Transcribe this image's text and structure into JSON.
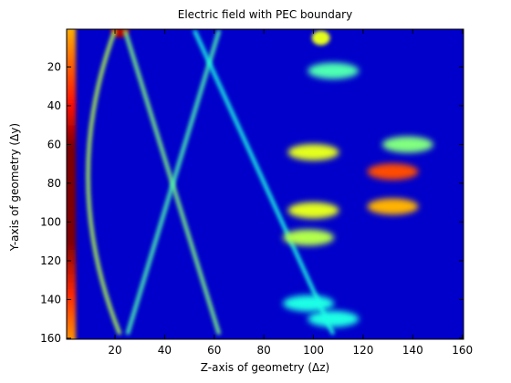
{
  "chart_data": {
    "type": "heatmap",
    "title": "Electric field with PEC boundary",
    "xlabel": "Z-axis of geometry (Δz)",
    "ylabel": "Y-axis of geometry (Δy)",
    "xlim": [
      1,
      160
    ],
    "ylim": [
      1,
      160
    ],
    "y_reversed": true,
    "xticks": [
      20,
      40,
      60,
      80,
      100,
      120,
      140,
      160
    ],
    "yticks": [
      20,
      40,
      60,
      80,
      100,
      120,
      140,
      160
    ],
    "colormap": "jet",
    "colorbar": false,
    "grid": false,
    "features": [
      {
        "kind": "left-edge-band",
        "x": 2,
        "y_range": [
          1,
          160
        ],
        "intensity": [
          0.45,
          1.0
        ]
      },
      {
        "kind": "hotspot",
        "x": 22,
        "y": 1,
        "intensity": 0.95
      },
      {
        "kind": "arc",
        "from": [
          20,
          1
        ],
        "to": [
          22,
          158
        ],
        "intensity": 0.55
      },
      {
        "kind": "ridge",
        "from": [
          24,
          1
        ],
        "to": [
          62,
          158
        ],
        "intensity": 0.5
      },
      {
        "kind": "ridge",
        "from": [
          62,
          1
        ],
        "to": [
          25,
          158
        ],
        "intensity": 0.45
      },
      {
        "kind": "ridge",
        "from": [
          52,
          1
        ],
        "to": [
          108,
          158
        ],
        "intensity": 0.4
      },
      {
        "kind": "lobe",
        "x": 100,
        "y": 64,
        "intensity": 0.6
      },
      {
        "kind": "lobe",
        "x": 100,
        "y": 94,
        "intensity": 0.6
      },
      {
        "kind": "lobe",
        "x": 132,
        "y": 74,
        "intensity": 0.8
      },
      {
        "kind": "lobe",
        "x": 132,
        "y": 92,
        "intensity": 0.7
      },
      {
        "kind": "lobe",
        "x": 138,
        "y": 60,
        "intensity": 0.5
      },
      {
        "kind": "lobe",
        "x": 98,
        "y": 108,
        "intensity": 0.55
      },
      {
        "kind": "hotspot",
        "x": 103,
        "y": 5,
        "intensity": 0.6
      },
      {
        "kind": "lobe",
        "x": 108,
        "y": 22,
        "intensity": 0.45
      },
      {
        "kind": "lobe",
        "x": 98,
        "y": 142,
        "intensity": 0.4
      },
      {
        "kind": "lobe",
        "x": 108,
        "y": 150,
        "intensity": 0.4
      }
    ]
  }
}
